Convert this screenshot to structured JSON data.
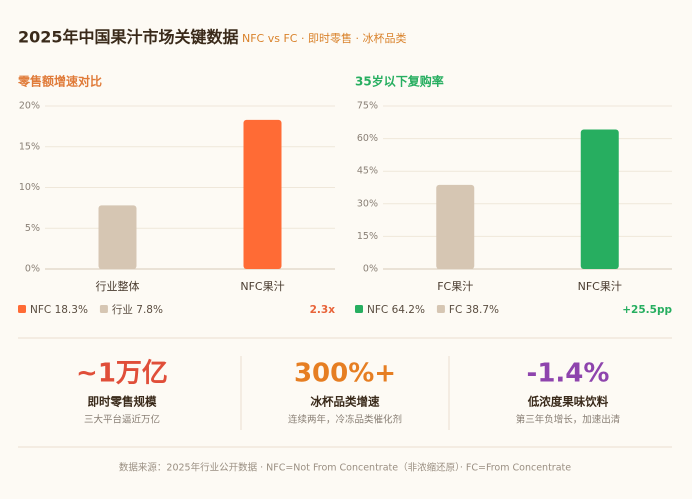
{
  "header": {
    "title": "2025年中国果汁市场关键数据",
    "subtitle": "NFC vs FC · 即时零售 · 冰杯品类"
  },
  "chart_data": [
    {
      "type": "bar",
      "title": "零售额增速对比",
      "title_color": "#e07b39",
      "categories": [
        "行业整体",
        "NFC果汁"
      ],
      "values": [
        7.8,
        18.3
      ],
      "colors": [
        "#d6c6b3",
        "#ff6b35"
      ],
      "ylim": [
        0,
        20
      ],
      "yticks": [
        {
          "value": 0,
          "label": "0%"
        },
        {
          "value": 5,
          "label": "5%"
        },
        {
          "value": 10,
          "label": "10%"
        },
        {
          "value": 15,
          "label": "15%"
        },
        {
          "value": 20,
          "label": "20%"
        }
      ],
      "grid": true,
      "legend": [
        {
          "name": "NFC 18.3%",
          "color": "#ff6b35"
        },
        {
          "name": "行业 7.8%",
          "color": "#d6c6b3"
        }
      ],
      "annotation": "2.3x",
      "annotation_color": "#e8643a"
    },
    {
      "type": "bar",
      "title": "35岁以下复购率",
      "title_color": "#27ae60",
      "categories": [
        "FC果汁",
        "NFC果汁"
      ],
      "values": [
        38.7,
        64.2
      ],
      "colors": [
        "#d6c6b3",
        "#27ae60"
      ],
      "ylim": [
        0,
        75
      ],
      "yticks": [
        {
          "value": 0,
          "label": "0%"
        },
        {
          "value": 15,
          "label": "15%"
        },
        {
          "value": 30,
          "label": "30%"
        },
        {
          "value": 45,
          "label": "45%"
        },
        {
          "value": 60,
          "label": "60%"
        },
        {
          "value": 75,
          "label": "75%"
        }
      ],
      "grid": true,
      "legend": [
        {
          "name": "NFC 64.2%",
          "color": "#27ae60"
        },
        {
          "name": "FC 38.7%",
          "color": "#d6c6b3"
        }
      ],
      "annotation": "+25.5pp",
      "annotation_color": "#27ae60"
    }
  ],
  "kpis": [
    {
      "value": "~1万亿",
      "label": "即时零售规模",
      "desc": "三大平台逼近万亿",
      "color": "#e04e39"
    },
    {
      "value": "300%+",
      "label": "冰杯品类增速",
      "desc": "连续两年，冷冻品类催化剂",
      "color": "#e67e22"
    },
    {
      "value": "-1.4%",
      "label": "低浓度果味饮料",
      "desc": "第三年负增长，加速出清",
      "color": "#8e44ad"
    }
  ],
  "footer": "数据来源：2025年行业公开数据 · NFC=Not From Concentrate（非浓缩还原）· FC=From Concentrate"
}
